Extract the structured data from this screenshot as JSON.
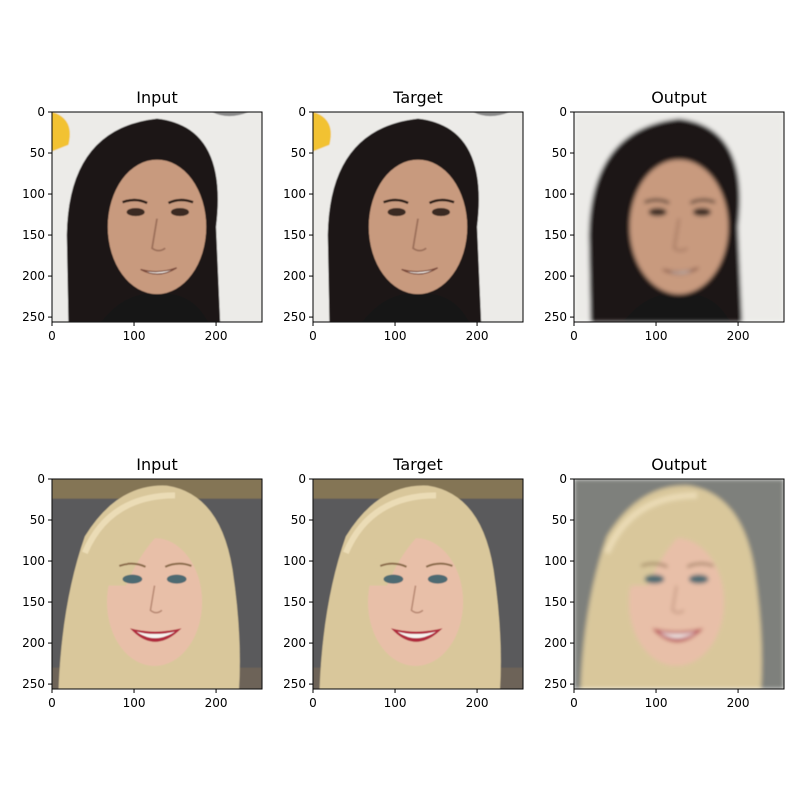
{
  "figure": {
    "rows": [
      {
        "panels": [
          {
            "title": "Input",
            "subject": "long-dark-hair-man",
            "background": "light"
          },
          {
            "title": "Target",
            "subject": "long-dark-hair-man",
            "background": "light"
          },
          {
            "title": "Output",
            "subject": "long-dark-hair-man",
            "background": "blurred-light"
          }
        ]
      },
      {
        "panels": [
          {
            "title": "Input",
            "subject": "blonde-woman",
            "background": "dark-gray"
          },
          {
            "title": "Target",
            "subject": "blonde-woman",
            "background": "dark-gray"
          },
          {
            "title": "Output",
            "subject": "blonde-woman",
            "background": "blurred-gray"
          }
        ]
      }
    ],
    "x_ticks": [
      "0",
      "100",
      "200"
    ],
    "y_ticks": [
      "0",
      "50",
      "100",
      "150",
      "200",
      "250"
    ],
    "image_size": 256
  },
  "colors": {
    "light_bg": "#ecebe8",
    "dark_bg": "#5a5a5c",
    "dark_hair": "#1c1614",
    "blonde_hair": "#d9c79b",
    "skin_male": "#c89a7e",
    "skin_female": "#e8bfa8",
    "lips": "#b02a3e",
    "clothing": "#141414"
  }
}
